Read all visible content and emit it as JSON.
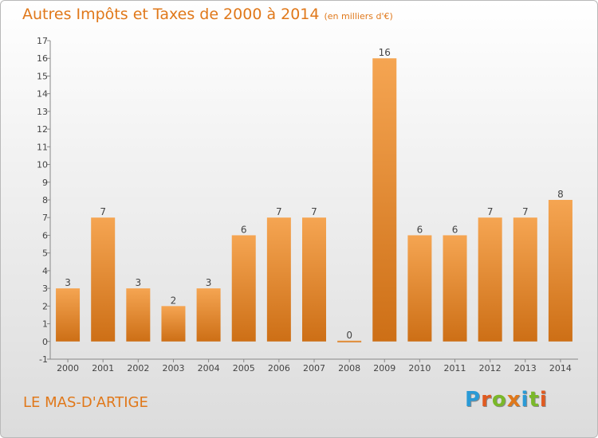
{
  "title": {
    "main": "Autres Impôts et Taxes de 2000 à 2014",
    "unit": "(en milliers d'€)"
  },
  "commune": "LE MAS-D'ARTIGE",
  "brand": {
    "letters": [
      "P",
      "r",
      "o",
      "x",
      "i",
      "t",
      "i"
    ],
    "colors": [
      "#2a9ad6",
      "#e05a20",
      "#7ab829",
      "#e0781a",
      "#2a9ad6",
      "#7ab829",
      "#e05a20"
    ]
  },
  "colors": {
    "bar_top": "#f5a552",
    "bar_bottom": "#cd6f16",
    "title": "#e0781a"
  },
  "chart_data": {
    "type": "bar",
    "categories": [
      "2000",
      "2001",
      "2002",
      "2003",
      "2004",
      "2005",
      "2006",
      "2007",
      "2008",
      "2009",
      "2010",
      "2011",
      "2012",
      "2013",
      "2014"
    ],
    "values": [
      3,
      7,
      3,
      2,
      3,
      6,
      7,
      7,
      0,
      16,
      6,
      6,
      7,
      7,
      8
    ],
    "data_labels": [
      "3",
      "7",
      "3",
      "2",
      "3",
      "6",
      "7",
      "7",
      "0",
      "16",
      "6",
      "6",
      "7",
      "7",
      "8"
    ],
    "y_ticks": [
      -1,
      0,
      1,
      2,
      3,
      4,
      5,
      6,
      7,
      8,
      9,
      10,
      11,
      12,
      13,
      14,
      15,
      16,
      17
    ],
    "ylim": [
      -1,
      17
    ],
    "grid": false
  }
}
